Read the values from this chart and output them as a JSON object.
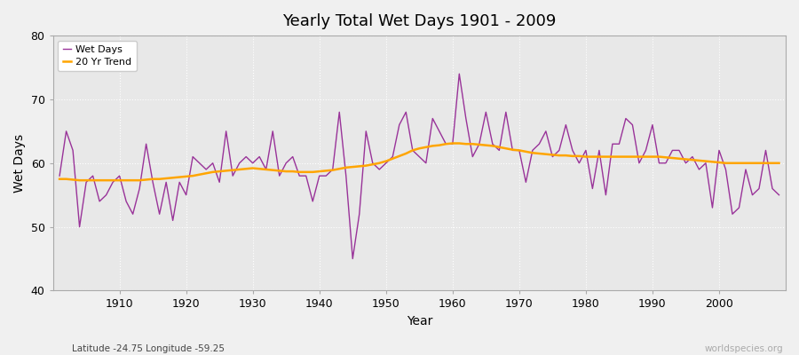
{
  "title": "Yearly Total Wet Days 1901 - 2009",
  "xlabel": "Year",
  "ylabel": "Wet Days",
  "subtitle": "Latitude -24.75 Longitude -59.25",
  "watermark": "worldspecies.org",
  "ylim": [
    40,
    80
  ],
  "yticks": [
    40,
    50,
    60,
    70,
    80
  ],
  "line_color": "#993399",
  "trend_color": "#FFA500",
  "bg_color": "#F0F0F0",
  "plot_bg_color": "#E8E8E8",
  "years": [
    1901,
    1902,
    1903,
    1904,
    1905,
    1906,
    1907,
    1908,
    1909,
    1910,
    1911,
    1912,
    1913,
    1914,
    1915,
    1916,
    1917,
    1918,
    1919,
    1920,
    1921,
    1922,
    1923,
    1924,
    1925,
    1926,
    1927,
    1928,
    1929,
    1930,
    1931,
    1932,
    1933,
    1934,
    1935,
    1936,
    1937,
    1938,
    1939,
    1940,
    1941,
    1942,
    1943,
    1944,
    1945,
    1946,
    1947,
    1948,
    1949,
    1950,
    1951,
    1952,
    1953,
    1954,
    1955,
    1956,
    1957,
    1958,
    1959,
    1960,
    1961,
    1962,
    1963,
    1964,
    1965,
    1966,
    1967,
    1968,
    1969,
    1970,
    1971,
    1972,
    1973,
    1974,
    1975,
    1976,
    1977,
    1978,
    1979,
    1980,
    1981,
    1982,
    1983,
    1984,
    1985,
    1986,
    1987,
    1988,
    1989,
    1990,
    1991,
    1992,
    1993,
    1994,
    1995,
    1996,
    1997,
    1998,
    1999,
    2000,
    2001,
    2002,
    2003,
    2004,
    2005,
    2006,
    2007,
    2008,
    2009
  ],
  "wet_days": [
    58,
    65,
    62,
    50,
    57,
    58,
    54,
    55,
    57,
    58,
    54,
    52,
    56,
    63,
    57,
    52,
    57,
    51,
    57,
    55,
    61,
    60,
    59,
    60,
    57,
    65,
    58,
    60,
    61,
    60,
    61,
    59,
    65,
    58,
    60,
    61,
    58,
    58,
    54,
    58,
    58,
    59,
    68,
    58,
    45,
    52,
    65,
    60,
    59,
    60,
    61,
    66,
    68,
    62,
    61,
    60,
    67,
    65,
    63,
    63,
    74,
    67,
    61,
    63,
    68,
    63,
    62,
    68,
    62,
    62,
    57,
    62,
    63,
    65,
    61,
    62,
    66,
    62,
    60,
    62,
    56,
    62,
    55,
    63,
    63,
    67,
    66,
    60,
    62,
    66,
    60,
    60,
    62,
    62,
    60,
    61,
    59,
    60,
    53,
    62,
    59,
    52,
    53,
    59,
    55,
    56,
    62,
    56,
    55
  ],
  "trend": [
    57.5,
    57.5,
    57.4,
    57.3,
    57.3,
    57.3,
    57.3,
    57.3,
    57.3,
    57.3,
    57.3,
    57.3,
    57.3,
    57.4,
    57.5,
    57.5,
    57.6,
    57.7,
    57.8,
    57.9,
    58.0,
    58.2,
    58.4,
    58.6,
    58.7,
    58.8,
    58.9,
    59.0,
    59.1,
    59.2,
    59.1,
    59.0,
    58.9,
    58.8,
    58.7,
    58.7,
    58.6,
    58.6,
    58.6,
    58.7,
    58.8,
    58.9,
    59.1,
    59.3,
    59.4,
    59.5,
    59.6,
    59.8,
    60.0,
    60.3,
    60.7,
    61.1,
    61.5,
    62.0,
    62.3,
    62.5,
    62.7,
    62.8,
    63.0,
    63.1,
    63.1,
    63.0,
    63.0,
    62.9,
    62.8,
    62.7,
    62.5,
    62.3,
    62.1,
    62.0,
    61.8,
    61.6,
    61.5,
    61.4,
    61.3,
    61.2,
    61.2,
    61.1,
    61.1,
    61.0,
    61.0,
    61.0,
    61.0,
    61.0,
    61.0,
    61.0,
    61.0,
    61.0,
    61.0,
    61.0,
    61.0,
    60.9,
    60.8,
    60.7,
    60.6,
    60.5,
    60.4,
    60.3,
    60.2,
    60.1,
    60.0,
    60.0,
    60.0,
    60.0,
    60.0,
    60.0,
    60.0,
    60.0,
    60.0
  ]
}
